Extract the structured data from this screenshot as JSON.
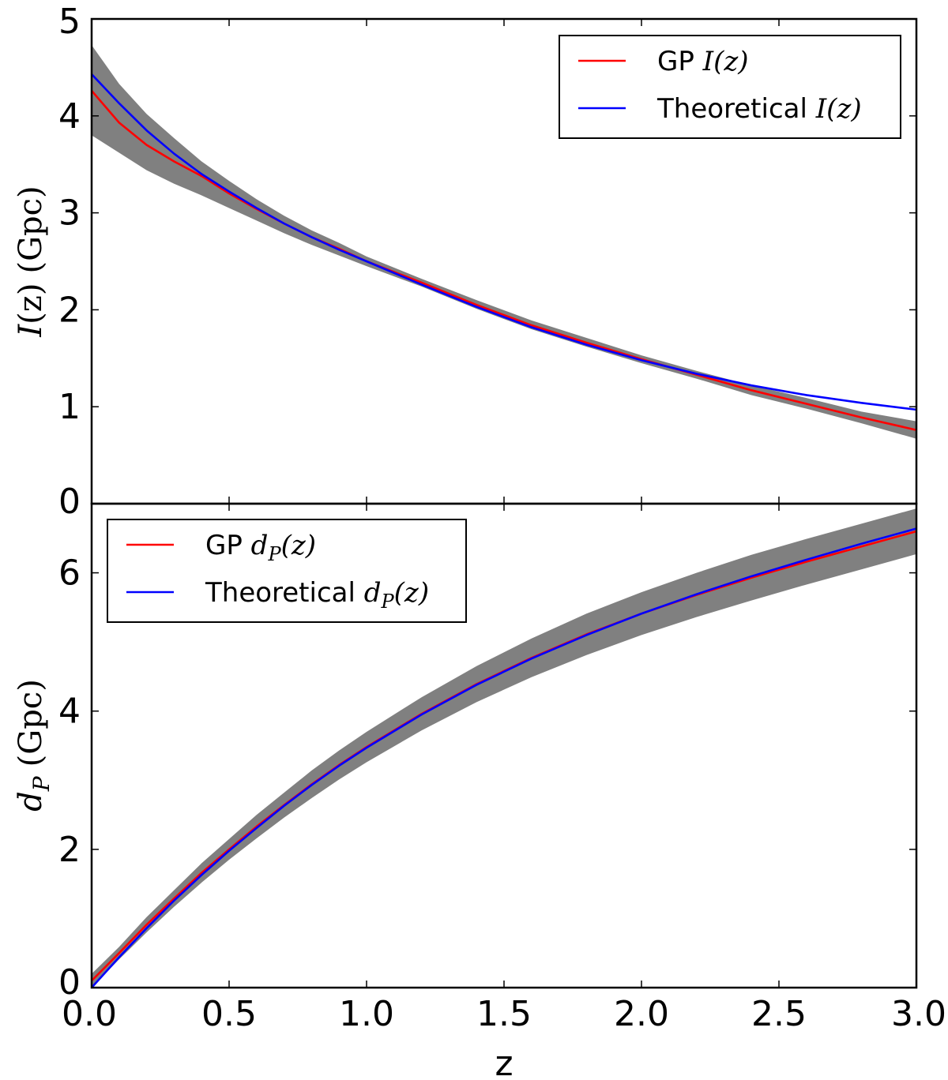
{
  "chart_data": [
    {
      "type": "line",
      "panel": "top",
      "ylabel": "I(z) (Gpc)",
      "ylabel_parts": {
        "var": "I",
        "arg": "(z)",
        "unit": "(Gpc)"
      },
      "xlim": [
        0.0,
        3.0
      ],
      "ylim": [
        0,
        5
      ],
      "yticks": [
        0,
        1,
        2,
        3,
        4,
        5
      ],
      "ytick_labels": [
        "0",
        "1",
        "2",
        "3",
        "4",
        "5"
      ],
      "legend_location": "top-right",
      "series": [
        {
          "name": "GP I(z)",
          "label_text": "GP ",
          "label_math": "I(z)",
          "color": "#ff0000",
          "x": [
            0.0,
            0.1,
            0.2,
            0.3,
            0.4,
            0.5,
            0.6,
            0.7,
            0.8,
            0.9,
            1.0,
            1.2,
            1.4,
            1.6,
            1.8,
            2.0,
            2.2,
            2.4,
            2.6,
            2.8,
            3.0
          ],
          "y": [
            4.26,
            3.93,
            3.7,
            3.53,
            3.38,
            3.2,
            3.04,
            2.89,
            2.75,
            2.63,
            2.5,
            2.28,
            2.05,
            1.84,
            1.66,
            1.49,
            1.33,
            1.17,
            1.03,
            0.89,
            0.76
          ],
          "band_lower": [
            3.8,
            3.62,
            3.44,
            3.3,
            3.18,
            3.05,
            2.92,
            2.79,
            2.67,
            2.56,
            2.45,
            2.24,
            2.01,
            1.8,
            1.62,
            1.45,
            1.29,
            1.12,
            0.98,
            0.83,
            0.67
          ],
          "band_upper": [
            4.73,
            4.33,
            4.02,
            3.77,
            3.53,
            3.33,
            3.14,
            2.97,
            2.82,
            2.69,
            2.55,
            2.32,
            2.1,
            1.89,
            1.71,
            1.53,
            1.37,
            1.22,
            1.09,
            0.95,
            0.85
          ]
        },
        {
          "name": "Theoretical I(z)",
          "label_text": "Theoretical ",
          "label_math": "I(z)",
          "color": "#0000ff",
          "x": [
            0.0,
            0.1,
            0.2,
            0.3,
            0.4,
            0.5,
            0.6,
            0.7,
            0.8,
            0.9,
            1.0,
            1.2,
            1.4,
            1.6,
            1.8,
            2.0,
            2.2,
            2.4,
            2.6,
            2.8,
            3.0
          ],
          "y": [
            4.43,
            4.13,
            3.85,
            3.61,
            3.4,
            3.22,
            3.05,
            2.89,
            2.75,
            2.62,
            2.5,
            2.26,
            2.03,
            1.82,
            1.64,
            1.48,
            1.34,
            1.22,
            1.12,
            1.04,
            0.97
          ]
        }
      ]
    },
    {
      "type": "line",
      "panel": "bottom",
      "ylabel": "d_P (Gpc)",
      "ylabel_parts": {
        "var": "d",
        "sub": "P",
        "unit": "(Gpc)"
      },
      "xlabel": "z",
      "xlim": [
        0.0,
        3.0
      ],
      "ylim": [
        0,
        7
      ],
      "xticks": [
        0.0,
        0.5,
        1.0,
        1.5,
        2.0,
        2.5,
        3.0
      ],
      "xtick_labels": [
        "0.0",
        "0.5",
        "1.0",
        "1.5",
        "2.0",
        "2.5",
        "3.0"
      ],
      "yticks": [
        0,
        2,
        4,
        6
      ],
      "ytick_labels": [
        "0",
        "2",
        "4",
        "6"
      ],
      "legend_location": "top-left",
      "series": [
        {
          "name": "GP d_P(z)",
          "label_text": "GP ",
          "label_math": "d",
          "label_sub": "P",
          "label_arg": "(z)",
          "color": "#ff0000",
          "x": [
            0.0,
            0.1,
            0.2,
            0.3,
            0.4,
            0.5,
            0.6,
            0.7,
            0.8,
            0.9,
            1.0,
            1.2,
            1.4,
            1.6,
            1.8,
            2.0,
            2.2,
            2.4,
            2.6,
            2.8,
            3.0
          ],
          "y": [
            0.1,
            0.5,
            0.91,
            1.29,
            1.66,
            2.0,
            2.33,
            2.64,
            2.94,
            3.22,
            3.48,
            3.96,
            4.39,
            4.77,
            5.11,
            5.41,
            5.68,
            5.93,
            6.16,
            6.38,
            6.6
          ],
          "band_lower": [
            0.0,
            0.41,
            0.8,
            1.17,
            1.52,
            1.85,
            2.16,
            2.46,
            2.74,
            3.01,
            3.26,
            3.72,
            4.13,
            4.49,
            4.81,
            5.1,
            5.36,
            5.6,
            5.83,
            6.05,
            6.27
          ],
          "band_upper": [
            0.2,
            0.59,
            1.02,
            1.41,
            1.8,
            2.15,
            2.5,
            2.82,
            3.14,
            3.43,
            3.7,
            4.2,
            4.65,
            5.05,
            5.41,
            5.72,
            6.0,
            6.26,
            6.49,
            6.71,
            6.93
          ]
        },
        {
          "name": "Theoretical d_P(z)",
          "label_text": "Theoretical ",
          "label_math": "d",
          "label_sub": "P",
          "label_arg": "(z)",
          "color": "#0000ff",
          "x": [
            0.0,
            0.1,
            0.2,
            0.3,
            0.4,
            0.5,
            0.6,
            0.7,
            0.8,
            0.9,
            1.0,
            1.2,
            1.4,
            1.6,
            1.8,
            2.0,
            2.2,
            2.4,
            2.6,
            2.8,
            3.0
          ],
          "y": [
            0.0,
            0.44,
            0.86,
            1.26,
            1.63,
            1.98,
            2.31,
            2.63,
            2.93,
            3.21,
            3.47,
            3.95,
            4.38,
            4.76,
            5.1,
            5.41,
            5.69,
            5.95,
            6.19,
            6.42,
            6.64
          ]
        }
      ]
    }
  ]
}
